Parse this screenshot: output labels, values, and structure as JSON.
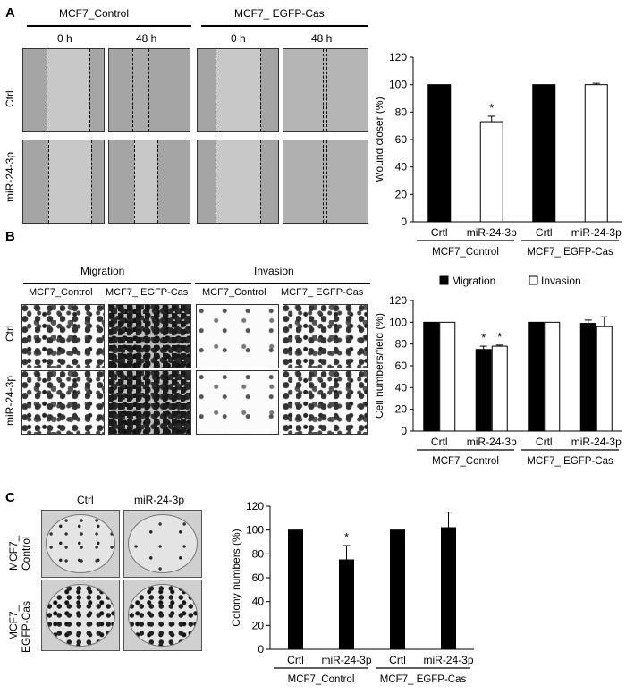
{
  "panel_a": {
    "letter": "A",
    "group_control": "MCF7_Control",
    "group_egfp": "MCF7_ EGFP-Cas",
    "time_0": "0 h",
    "time_48": "48 h",
    "row_ctrl": "Ctrl",
    "row_mir": "miR-24-3p"
  },
  "panel_b": {
    "letter": "B",
    "migration": "Migration",
    "invasion": "Invasion",
    "col_control": "MCF7_Control",
    "col_egfp": "MCF7_ EGFP-Cas",
    "row_ctrl": "Ctrl",
    "row_mir": "miR-24-3p"
  },
  "panel_c": {
    "letter": "C",
    "col_ctrl": "Ctrl",
    "col_mir": "miR-24-3p",
    "row_control_1": "MCF7_",
    "row_control_2": "Control",
    "row_egfp_1": "MCF7_",
    "row_egfp_2": "EGFP-Cas"
  },
  "chart_data": [
    {
      "type": "bar",
      "ylabel": "Wound closer (%)",
      "ylim": [
        0,
        120
      ],
      "yticks": [
        0,
        20,
        40,
        60,
        80,
        100,
        120
      ],
      "categories": [
        "Crtl",
        "miR-24-3p",
        "Crtl",
        "miR-24-3p"
      ],
      "groups": [
        "MCF7_Control",
        "MCF7_ EGFP-Cas"
      ],
      "values": [
        100,
        73,
        100,
        100
      ],
      "errors": [
        0,
        4,
        0,
        1
      ],
      "fills": [
        "#000000",
        "#ffffff",
        "#000000",
        "#ffffff"
      ],
      "significance": [
        "",
        "*",
        "",
        ""
      ]
    },
    {
      "type": "bar",
      "ylabel": "Cell numbers/field (%)",
      "ylim": [
        0,
        120
      ],
      "yticks": [
        0,
        20,
        40,
        60,
        80,
        100,
        120
      ],
      "categories": [
        "Crtl",
        "miR-24-3p",
        "Crtl",
        "miR-24-3p"
      ],
      "groups": [
        "MCF7_Control",
        "MCF7_ EGFP-Cas"
      ],
      "legend_placement": "top",
      "series": [
        {
          "name": "Migration",
          "color": "#000000",
          "values": [
            100,
            75,
            100,
            99
          ],
          "errors": [
            0,
            3,
            0,
            3
          ],
          "significance": [
            "",
            "*",
            "",
            ""
          ]
        },
        {
          "name": "Invasion",
          "color": "#ffffff",
          "values": [
            100,
            78,
            100,
            96
          ],
          "errors": [
            0,
            1,
            0,
            9
          ],
          "significance": [
            "",
            "*",
            "",
            ""
          ]
        }
      ]
    },
    {
      "type": "bar",
      "ylabel": "Colony numbers (%)",
      "ylim": [
        0,
        120
      ],
      "yticks": [
        0,
        20,
        40,
        60,
        80,
        100,
        120
      ],
      "categories": [
        "Crtl",
        "miR-24-3p",
        "Crtl",
        "miR-24-3p"
      ],
      "groups": [
        "MCF7_Control",
        "MCF7_ EGFP-Cas"
      ],
      "values": [
        100,
        75,
        100,
        102
      ],
      "errors": [
        0,
        12,
        0,
        13
      ],
      "fills": [
        "#000000",
        "#000000",
        "#000000",
        "#000000"
      ],
      "significance": [
        "",
        "*",
        "",
        ""
      ]
    }
  ]
}
